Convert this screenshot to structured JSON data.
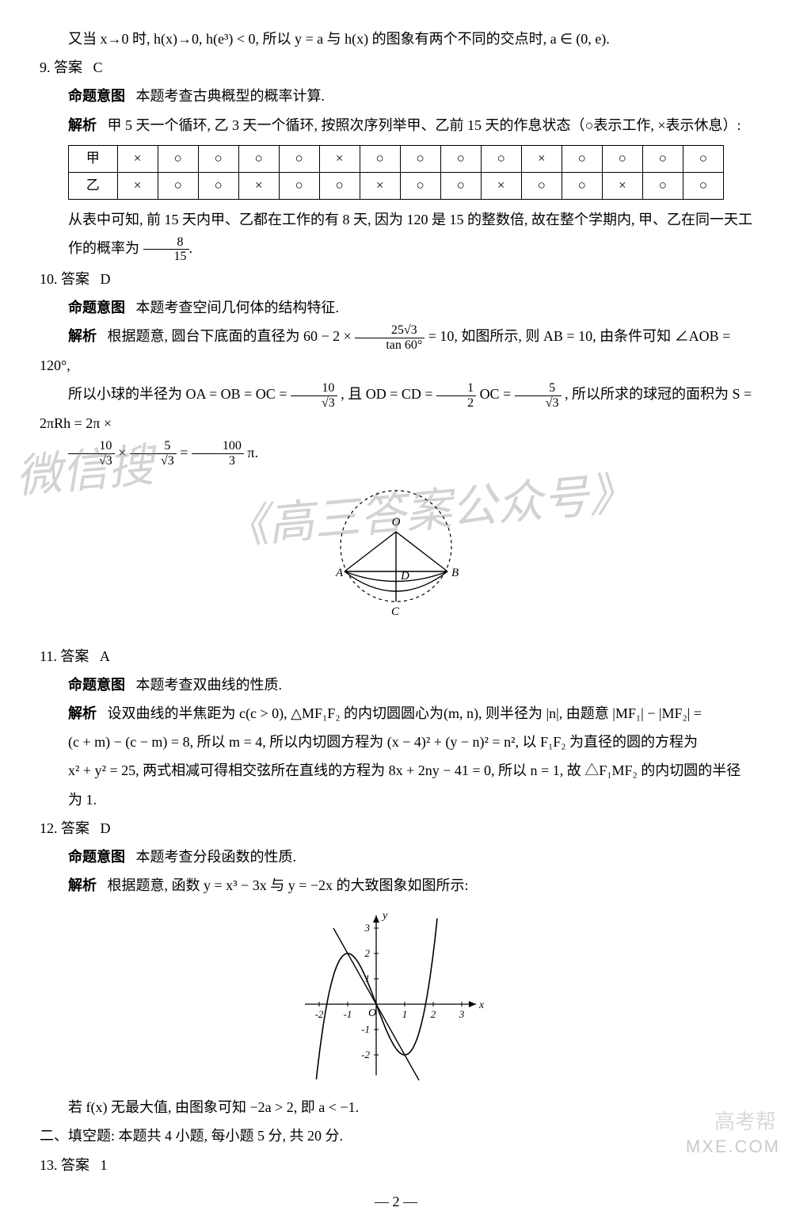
{
  "top_line": "又当 x→0 时, h(x)→0, h(e³) < 0, 所以 y = a 与 h(x) 的图象有两个不同的交点时, a ∈ (0, e).",
  "q9": {
    "answer_label": "9. 答案",
    "answer": "C",
    "intent_label": "命题意图",
    "intent": "本题考查古典概型的概率计算.",
    "analysis_label": "解析",
    "analysis_pre": "甲 5 天一个循环, 乙 3 天一个循环, 按照次序列举甲、乙前 15 天的作息状态（○表示工作, ×表示休息）:",
    "table": {
      "row_jia_label": "甲",
      "row_yi_label": "乙",
      "jia": [
        "×",
        "○",
        "○",
        "○",
        "○",
        "×",
        "○",
        "○",
        "○",
        "○",
        "×",
        "○",
        "○",
        "○",
        "○"
      ],
      "yi": [
        "×",
        "○",
        "○",
        "×",
        "○",
        "○",
        "×",
        "○",
        "○",
        "×",
        "○",
        "○",
        "×",
        "○",
        "○"
      ]
    },
    "analysis_post_1": "从表中可知, 前 15 天内甲、乙都在工作的有 8 天, 因为 120 是 15 的整数倍, 故在整个学期内, 甲、乙在同一天工",
    "analysis_post_2": "作的概率为",
    "frac_num": "8",
    "frac_den": "15",
    "period": "."
  },
  "q10": {
    "answer_label": "10. 答案",
    "answer": "D",
    "intent_label": "命题意图",
    "intent": "本题考查空间几何体的结构特征.",
    "analysis_label": "解析",
    "line1_a": "根据题意, 圆台下底面的直径为 60 − 2 ×",
    "frac1_num": "25√3",
    "frac1_den": "tan 60°",
    "line1_b": "= 10, 如图所示, 则 AB = 10, 由条件可知 ∠AOB = 120°,",
    "line2_a": "所以小球的半径为 OA = OB = OC =",
    "frac2_num": "10",
    "frac2_den": "√3",
    "line2_b": ", 且 OD = CD =",
    "frac3_num": "1",
    "frac3_den": "2",
    "line2_c": "OC =",
    "frac4_num": "5",
    "frac4_den": "√3",
    "line2_d": ", 所以所求的球冠的面积为 S = 2πRh = 2π ×",
    "frac5_num": "10",
    "frac5_den": "√3",
    "times": "×",
    "frac6_num": "5",
    "frac6_den": "√3",
    "eq": "=",
    "frac7_num": "100",
    "frac7_den": "3",
    "pi": "π.",
    "diagram_labels": {
      "O": "O",
      "A": "A",
      "B": "B",
      "C": "C",
      "D": "D"
    }
  },
  "q11": {
    "answer_label": "11. 答案",
    "answer": "A",
    "intent_label": "命题意图",
    "intent": "本题考查双曲线的性质.",
    "analysis_label": "解析",
    "line1": "设双曲线的半焦距为 c(c > 0), △MF₁F₂ 的内切圆圆心为(m, n), 则半径为 |n|, 由题意 |MF₁| − |MF₂| =",
    "line2": "(c + m) − (c − m) = 8, 所以 m = 4, 所以内切圆方程为 (x − 4)² + (y − n)² = n², 以 F₁F₂ 为直径的圆的方程为",
    "line3": "x² + y² = 25, 两式相减可得相交弦所在直线的方程为 8x + 2ny − 41 = 0, 所以 n = 1, 故 △F₁MF₂ 的内切圆的半径",
    "line4": "为 1."
  },
  "q12": {
    "answer_label": "12. 答案",
    "answer": "D",
    "intent_label": "命题意图",
    "intent": "本题考查分段函数的性质.",
    "analysis_label": "解析",
    "line1": "根据题意, 函数 y = x³ − 3x 与 y = −2x 的大致图象如图所示:",
    "line2": "若 f(x) 无最大值, 由图象可知 −2a > 2, 即 a < −1."
  },
  "chart": {
    "type": "line",
    "x_ticks": [
      -2,
      -1,
      1,
      2,
      3
    ],
    "y_ticks": [
      -2,
      -1,
      1,
      2,
      3
    ],
    "x_label": "x",
    "y_label": "y",
    "origin_label": "O",
    "axis_color": "#000000",
    "curve_color": "#000000",
    "line_color": "#000000",
    "cubic_extrema": {
      "local_max": [
        -1,
        2
      ],
      "local_min": [
        1,
        -2
      ]
    },
    "linear_points": [
      [
        -1.5,
        3
      ],
      [
        1.5,
        -3
      ]
    ],
    "xlim": [
      -2.5,
      3.5
    ],
    "ylim": [
      -2.8,
      3.5
    ]
  },
  "section2": "二、填空题: 本题共 4 小题, 每小题 5 分, 共 20 分.",
  "q13": {
    "answer_label": "13. 答案",
    "answer": "1"
  },
  "page_number": "— 2 —",
  "watermark1": "微信搜",
  "watermark2": "《高三答案公众号》",
  "corner": "MXE.COM",
  "corner2": "高考帮"
}
